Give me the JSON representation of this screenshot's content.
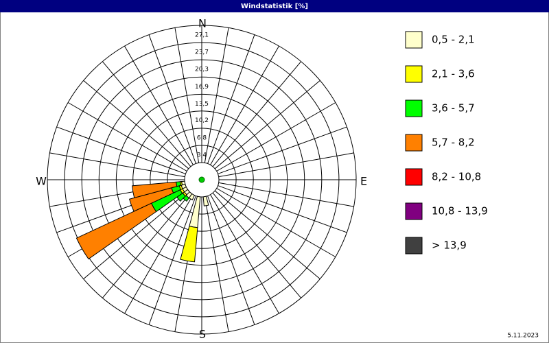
{
  "chart_data": {
    "type": "windrose",
    "title": "Windstatistik [%]",
    "directions": [
      "N",
      "E",
      "S",
      "W"
    ],
    "x": [
      170,
      190,
      210,
      220,
      230,
      240,
      250,
      260
    ],
    "series": [
      {
        "name": "0,5 - 2,1",
        "color": "#ffffcc",
        "values": [
          1.8,
          6.1,
          1.0,
          1.0,
          0.8,
          0.8,
          0.8,
          0.6
        ]
      },
      {
        "name": "2,1 - 3,6",
        "color": "#ffff00",
        "values": [
          0,
          6.8,
          0,
          0,
          0.4,
          0.5,
          0.4,
          0.3
        ]
      },
      {
        "name": "3,6 - 5,7",
        "color": "#00ff00",
        "values": [
          0,
          0,
          0,
          0.8,
          1.4,
          6.3,
          1.6,
          0.8
        ]
      },
      {
        "name": "5,7 - 8,2",
        "color": "#ff8000",
        "values": [
          0,
          0,
          0,
          0,
          0,
          16.3,
          8.6,
          8.7
        ]
      },
      {
        "name": "8,2 - 10,8",
        "color": "#ff0000",
        "values": [
          0,
          0,
          0,
          0,
          0,
          0,
          0,
          0
        ]
      },
      {
        "name": "10,8 - 13,9",
        "color": "#800080",
        "values": [
          0,
          0,
          0,
          0,
          0,
          0,
          0,
          0
        ]
      },
      {
        "name": "> 13,9",
        "color": "#404040",
        "values": [
          0,
          0,
          0,
          0,
          0,
          0,
          0,
          0
        ]
      }
    ],
    "ylim": [
      0,
      27.1
    ],
    "yticks": [
      {
        "value": 3.4,
        "label": "3,4"
      },
      {
        "value": 6.8,
        "label": "6,8"
      },
      {
        "value": 10.2,
        "label": "10,2"
      },
      {
        "value": 13.5,
        "label": "13,5"
      },
      {
        "value": 16.9,
        "label": "16,9"
      },
      {
        "value": 20.3,
        "label": "20,3"
      },
      {
        "value": 23.7,
        "label": "23,7"
      },
      {
        "value": 27.1,
        "label": "27,1"
      }
    ],
    "date": "5.11.2023"
  }
}
